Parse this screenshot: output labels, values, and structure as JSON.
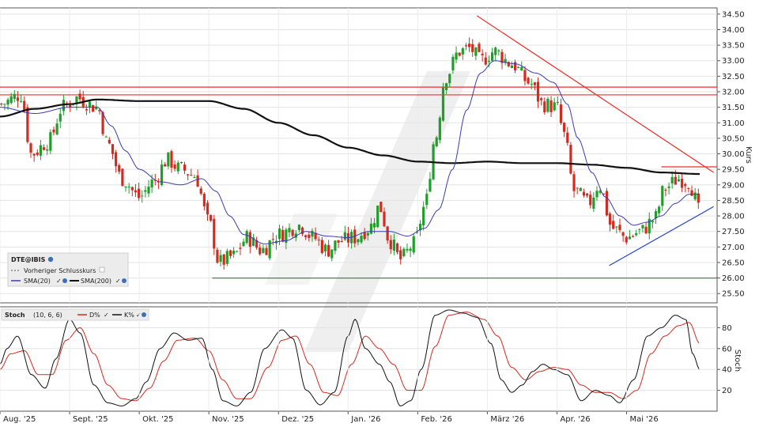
{
  "chart_data": [
    {
      "type": "candlestick",
      "legend": {
        "symbol": "DTE@IBIS",
        "prev_close_label": "Vorheriger Schlusskurs",
        "sma20_label": "SMA(20)",
        "sma200_label": "SMA(200)"
      },
      "ylabel": "Kurs",
      "ylim": [
        25.2,
        34.7
      ],
      "y_ticks": [
        "25.50",
        "26.00",
        "26.50",
        "27.00",
        "27.50",
        "28.00",
        "28.50",
        "29.00",
        "29.50",
        "30.00",
        "30.50",
        "31.00",
        "31.50",
        "32.00",
        "32.50",
        "33.00",
        "33.50",
        "34.00",
        "34.50"
      ],
      "x_ticks": [
        "Aug. '25",
        "Sept. '25",
        "Okt. '25",
        "Nov. '25",
        "Dez. '25",
        "Jan. '26",
        "Feb. '26",
        "März '26",
        "Apr. '26",
        "Mai '26"
      ],
      "x_range": [
        0,
        10.3
      ],
      "anchors_close": [
        [
          0,
          31.6
        ],
        [
          0.3,
          31.9
        ],
        [
          0.45,
          30.0
        ],
        [
          0.7,
          30.4
        ],
        [
          0.9,
          31.5
        ],
        [
          1.1,
          31.8
        ],
        [
          1.4,
          31.5
        ],
        [
          1.55,
          30.3
        ],
        [
          1.75,
          29.2
        ],
        [
          2.0,
          28.6
        ],
        [
          2.2,
          29.1
        ],
        [
          2.4,
          29.8
        ],
        [
          2.6,
          29.5
        ],
        [
          2.8,
          29.3
        ],
        [
          3.0,
          27.8
        ],
        [
          3.15,
          26.5
        ],
        [
          3.35,
          26.7
        ],
        [
          3.55,
          27.3
        ],
        [
          3.75,
          26.9
        ],
        [
          4.0,
          27.4
        ],
        [
          4.3,
          27.7
        ],
        [
          4.5,
          27.3
        ],
        [
          4.7,
          26.9
        ],
        [
          4.9,
          27.2
        ],
        [
          5.1,
          27.3
        ],
        [
          5.3,
          27.6
        ],
        [
          5.45,
          28.3
        ],
        [
          5.6,
          27.2
        ],
        [
          5.75,
          26.6
        ],
        [
          5.95,
          27.1
        ],
        [
          6.1,
          28.3
        ],
        [
          6.25,
          30.5
        ],
        [
          6.4,
          32.5
        ],
        [
          6.6,
          33.3
        ],
        [
          6.75,
          33.4
        ],
        [
          6.9,
          33.0
        ],
        [
          7.1,
          33.3
        ],
        [
          7.35,
          32.9
        ],
        [
          7.6,
          32.3
        ],
        [
          7.8,
          31.6
        ],
        [
          8.0,
          31.5
        ],
        [
          8.1,
          30.6
        ],
        [
          8.25,
          28.8
        ],
        [
          8.45,
          28.4
        ],
        [
          8.6,
          29.0
        ],
        [
          8.8,
          27.6
        ],
        [
          9.0,
          27.3
        ],
        [
          9.2,
          27.5
        ],
        [
          9.4,
          27.9
        ],
        [
          9.55,
          28.9
        ],
        [
          9.75,
          29.2
        ],
        [
          9.9,
          29.1
        ],
        [
          10.0,
          28.5
        ],
        [
          10.05,
          28.0
        ]
      ],
      "anchors_sma20": [
        [
          0,
          31.5
        ],
        [
          0.5,
          31.3
        ],
        [
          1.0,
          31.5
        ],
        [
          1.4,
          31.5
        ],
        [
          1.6,
          30.9
        ],
        [
          1.8,
          30.1
        ],
        [
          2.0,
          29.5
        ],
        [
          2.3,
          29.1
        ],
        [
          2.6,
          29.0
        ],
        [
          2.9,
          29.2
        ],
        [
          3.1,
          28.8
        ],
        [
          3.3,
          28.0
        ],
        [
          3.5,
          27.4
        ],
        [
          3.8,
          27.1
        ],
        [
          4.1,
          27.2
        ],
        [
          4.4,
          27.5
        ],
        [
          4.7,
          27.35
        ],
        [
          5.0,
          27.3
        ],
        [
          5.3,
          27.5
        ],
        [
          5.6,
          27.5
        ],
        [
          5.85,
          27.35
        ],
        [
          6.1,
          27.6
        ],
        [
          6.3,
          28.2
        ],
        [
          6.5,
          29.5
        ],
        [
          6.7,
          31.4
        ],
        [
          6.9,
          32.6
        ],
        [
          7.1,
          33.0
        ],
        [
          7.4,
          32.9
        ],
        [
          7.7,
          32.6
        ],
        [
          7.95,
          32.3
        ],
        [
          8.15,
          31.6
        ],
        [
          8.3,
          30.5
        ],
        [
          8.5,
          29.4
        ],
        [
          8.7,
          28.6
        ],
        [
          8.9,
          28.0
        ],
        [
          9.1,
          27.7
        ],
        [
          9.3,
          27.8
        ],
        [
          9.5,
          28.0
        ],
        [
          9.7,
          28.4
        ],
        [
          9.9,
          28.7
        ],
        [
          10.05,
          28.7
        ]
      ],
      "anchors_sma200": [
        [
          0,
          31.2
        ],
        [
          0.5,
          31.45
        ],
        [
          1.0,
          31.6
        ],
        [
          1.4,
          31.75
        ],
        [
          2.0,
          31.7
        ],
        [
          2.5,
          31.7
        ],
        [
          3.0,
          31.7
        ],
        [
          3.5,
          31.45
        ],
        [
          4.0,
          31.0
        ],
        [
          4.5,
          30.6
        ],
        [
          5.0,
          30.2
        ],
        [
          5.5,
          29.95
        ],
        [
          6.0,
          29.75
        ],
        [
          6.5,
          29.7
        ],
        [
          7.0,
          29.75
        ],
        [
          7.5,
          29.7
        ],
        [
          8.0,
          29.7
        ],
        [
          8.5,
          29.65
        ],
        [
          9.0,
          29.55
        ],
        [
          9.5,
          29.4
        ],
        [
          10.05,
          29.35
        ]
      ],
      "hlines": [
        {
          "y": 32.15,
          "color": "#e8302a"
        },
        {
          "y": 31.9,
          "color": "#e8302a"
        },
        {
          "y": 26.0,
          "color": "#2a9a2a",
          "x0": 3.05
        },
        {
          "y": 29.58,
          "color": "#e8302a",
          "x0": 9.5
        }
      ],
      "trendlines": [
        {
          "x0": 6.85,
          "y0": 34.45,
          "x1": 10.25,
          "y1": 29.4,
          "color": "#e8302a"
        },
        {
          "x0": 8.75,
          "y0": 26.4,
          "x1": 10.25,
          "y1": 28.3,
          "color": "#2244cc"
        }
      ],
      "colors": {
        "up": "#1f9e2a",
        "down": "#d42a1f",
        "sma20": "#3b3bb0",
        "sma200": "#111111"
      }
    },
    {
      "type": "line",
      "legend": {
        "name": "Stoch",
        "params": "(10, 6, 6)",
        "d_label": "D%",
        "k_label": "K%"
      },
      "ylabel": "Stoch",
      "ylim": [
        0,
        100
      ],
      "y_ticks": [
        "20",
        "40",
        "60",
        "80"
      ],
      "series": [
        {
          "name": "K%",
          "color": "#111111",
          "values": [
            [
              0,
              45
            ],
            [
              0.1,
              60
            ],
            [
              0.25,
              72
            ],
            [
              0.45,
              35
            ],
            [
              0.65,
              22
            ],
            [
              0.8,
              50
            ],
            [
              1.0,
              88
            ],
            [
              1.15,
              75
            ],
            [
              1.35,
              25
            ],
            [
              1.55,
              8
            ],
            [
              1.75,
              5
            ],
            [
              1.95,
              12
            ],
            [
              2.1,
              28
            ],
            [
              2.3,
              60
            ],
            [
              2.5,
              75
            ],
            [
              2.7,
              68
            ],
            [
              2.9,
              70
            ],
            [
              3.05,
              40
            ],
            [
              3.2,
              10
            ],
            [
              3.4,
              5
            ],
            [
              3.6,
              18
            ],
            [
              3.8,
              60
            ],
            [
              4.05,
              78
            ],
            [
              4.2,
              70
            ],
            [
              4.4,
              20
            ],
            [
              4.6,
              6
            ],
            [
              4.8,
              18
            ],
            [
              5.0,
              72
            ],
            [
              5.1,
              88
            ],
            [
              5.25,
              60
            ],
            [
              5.45,
              45
            ],
            [
              5.6,
              28
            ],
            [
              5.75,
              5
            ],
            [
              5.9,
              10
            ],
            [
              6.05,
              40
            ],
            [
              6.25,
              92
            ],
            [
              6.45,
              97
            ],
            [
              6.65,
              94
            ],
            [
              6.85,
              90
            ],
            [
              7.05,
              65
            ],
            [
              7.2,
              30
            ],
            [
              7.35,
              18
            ],
            [
              7.5,
              25
            ],
            [
              7.65,
              38
            ],
            [
              7.8,
              45
            ],
            [
              7.95,
              40
            ],
            [
              8.15,
              35
            ],
            [
              8.35,
              10
            ],
            [
              8.55,
              20
            ],
            [
              8.75,
              15
            ],
            [
              8.9,
              8
            ],
            [
              9.1,
              30
            ],
            [
              9.3,
              72
            ],
            [
              9.5,
              80
            ],
            [
              9.7,
              92
            ],
            [
              9.85,
              88
            ],
            [
              9.95,
              55
            ],
            [
              10.05,
              40
            ]
          ]
        },
        {
          "name": "D%",
          "color": "#d42a1f",
          "values": [
            [
              0,
              40
            ],
            [
              0.15,
              55
            ],
            [
              0.35,
              58
            ],
            [
              0.55,
              35
            ],
            [
              0.75,
              35
            ],
            [
              0.95,
              68
            ],
            [
              1.15,
              80
            ],
            [
              1.35,
              55
            ],
            [
              1.55,
              25
            ],
            [
              1.75,
              12
            ],
            [
              1.95,
              10
            ],
            [
              2.15,
              22
            ],
            [
              2.35,
              48
            ],
            [
              2.55,
              68
            ],
            [
              2.8,
              70
            ],
            [
              3.0,
              58
            ],
            [
              3.2,
              30
            ],
            [
              3.4,
              12
            ],
            [
              3.6,
              12
            ],
            [
              3.85,
              42
            ],
            [
              4.05,
              68
            ],
            [
              4.25,
              72
            ],
            [
              4.45,
              45
            ],
            [
              4.65,
              18
            ],
            [
              4.85,
              15
            ],
            [
              5.05,
              45
            ],
            [
              5.25,
              72
            ],
            [
              5.45,
              60
            ],
            [
              5.65,
              45
            ],
            [
              5.85,
              20
            ],
            [
              6.05,
              20
            ],
            [
              6.25,
              62
            ],
            [
              6.45,
              92
            ],
            [
              6.7,
              95
            ],
            [
              6.95,
              88
            ],
            [
              7.15,
              72
            ],
            [
              7.35,
              42
            ],
            [
              7.55,
              30
            ],
            [
              7.75,
              38
            ],
            [
              7.95,
              42
            ],
            [
              8.15,
              40
            ],
            [
              8.35,
              25
            ],
            [
              8.55,
              18
            ],
            [
              8.75,
              18
            ],
            [
              8.95,
              12
            ],
            [
              9.15,
              20
            ],
            [
              9.35,
              55
            ],
            [
              9.55,
              72
            ],
            [
              9.75,
              82
            ],
            [
              9.9,
              85
            ],
            [
              10.05,
              65
            ]
          ]
        }
      ]
    }
  ]
}
